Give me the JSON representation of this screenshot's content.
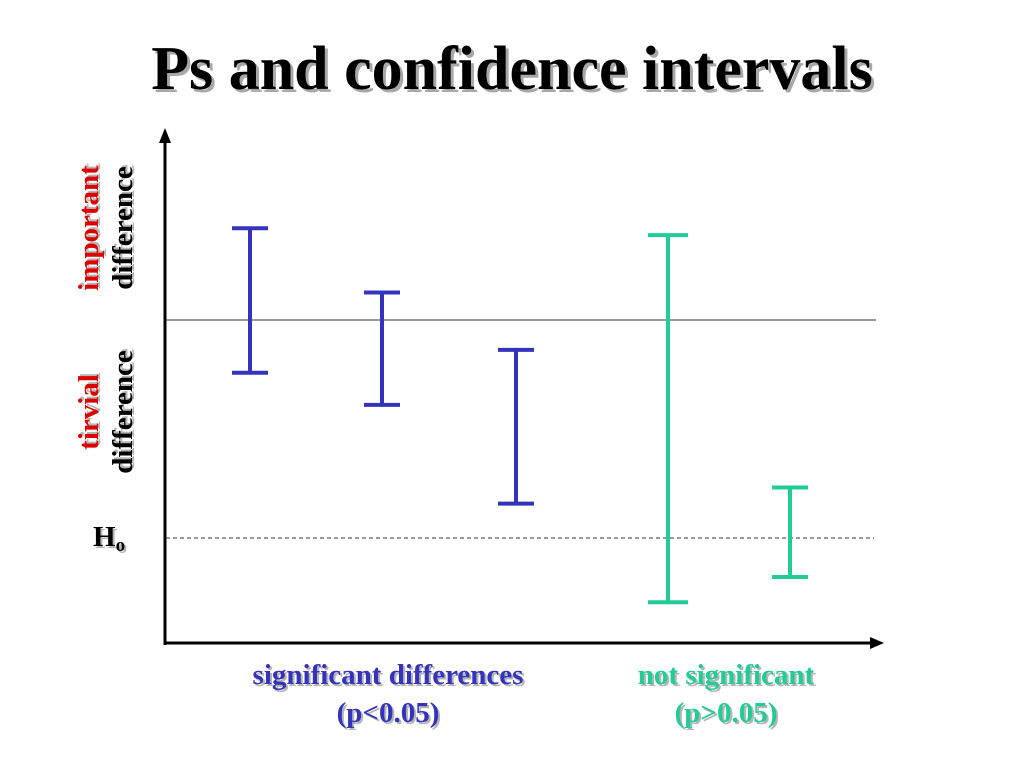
{
  "title": "Ps and confidence intervals",
  "y_labels": {
    "important_word": "important",
    "important_suffix": "difference",
    "trivial_word": "tirvial",
    "trivial_suffix": "difference"
  },
  "h0": {
    "main": "H",
    "sub": "o"
  },
  "groups": {
    "significant": {
      "line1": "significant differences",
      "line2": "(p<0.05)"
    },
    "not_significant": {
      "line1": "not significant",
      "line2": "(p>0.05)"
    }
  },
  "colors": {
    "significant": "#3333bb",
    "not_significant": "#22cc99",
    "important_label": "#dd0000",
    "axis": "#000000"
  },
  "chart_data": {
    "type": "error-bar-diagram",
    "threshold_line": "important/trivial boundary",
    "null_line": "Ho",
    "intervals": [
      {
        "group": "significant",
        "low": 0.72,
        "high": 1.35
      },
      {
        "group": "significant",
        "low": 0.58,
        "high": 1.07
      },
      {
        "group": "significant",
        "low": 0.15,
        "high": 0.82
      },
      {
        "group": "not_significant",
        "low": -0.28,
        "high": 1.32
      },
      {
        "group": "not_significant",
        "low": -0.17,
        "high": 0.22
      }
    ],
    "threshold_value": 0.95,
    "null_value": 0.0,
    "ylim": [
      -0.45,
      1.75
    ]
  }
}
